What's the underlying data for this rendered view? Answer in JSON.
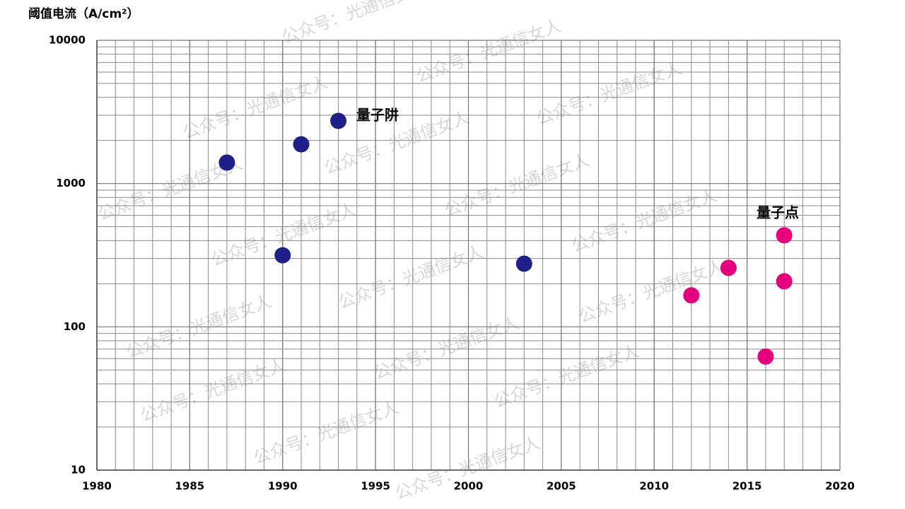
{
  "chart_data": {
    "type": "scatter",
    "title": "阈值电流（A/cm²）",
    "log_y": true,
    "grid": true,
    "minor_grid": true,
    "xlim": [
      1980,
      2020
    ],
    "xticks": [
      1980,
      1985,
      1990,
      1995,
      2000,
      2005,
      2010,
      2015,
      2020
    ],
    "ylim": [
      10,
      10000
    ],
    "yticks": [
      10,
      100,
      1000,
      10000
    ],
    "series": [
      {
        "name": "量子阱",
        "color": "#1f1f8a",
        "x": [
          1987,
          1991,
          1993,
          1990,
          2003
        ],
        "values": [
          1400,
          1880,
          2740,
          316,
          276
        ]
      },
      {
        "name": "量子点",
        "color": "#e6007e",
        "x": [
          2012,
          2014,
          2017,
          2017,
          2016
        ],
        "values": [
          166,
          258,
          435,
          208,
          62
        ]
      }
    ],
    "watermark": "公众号：光通信女人"
  }
}
